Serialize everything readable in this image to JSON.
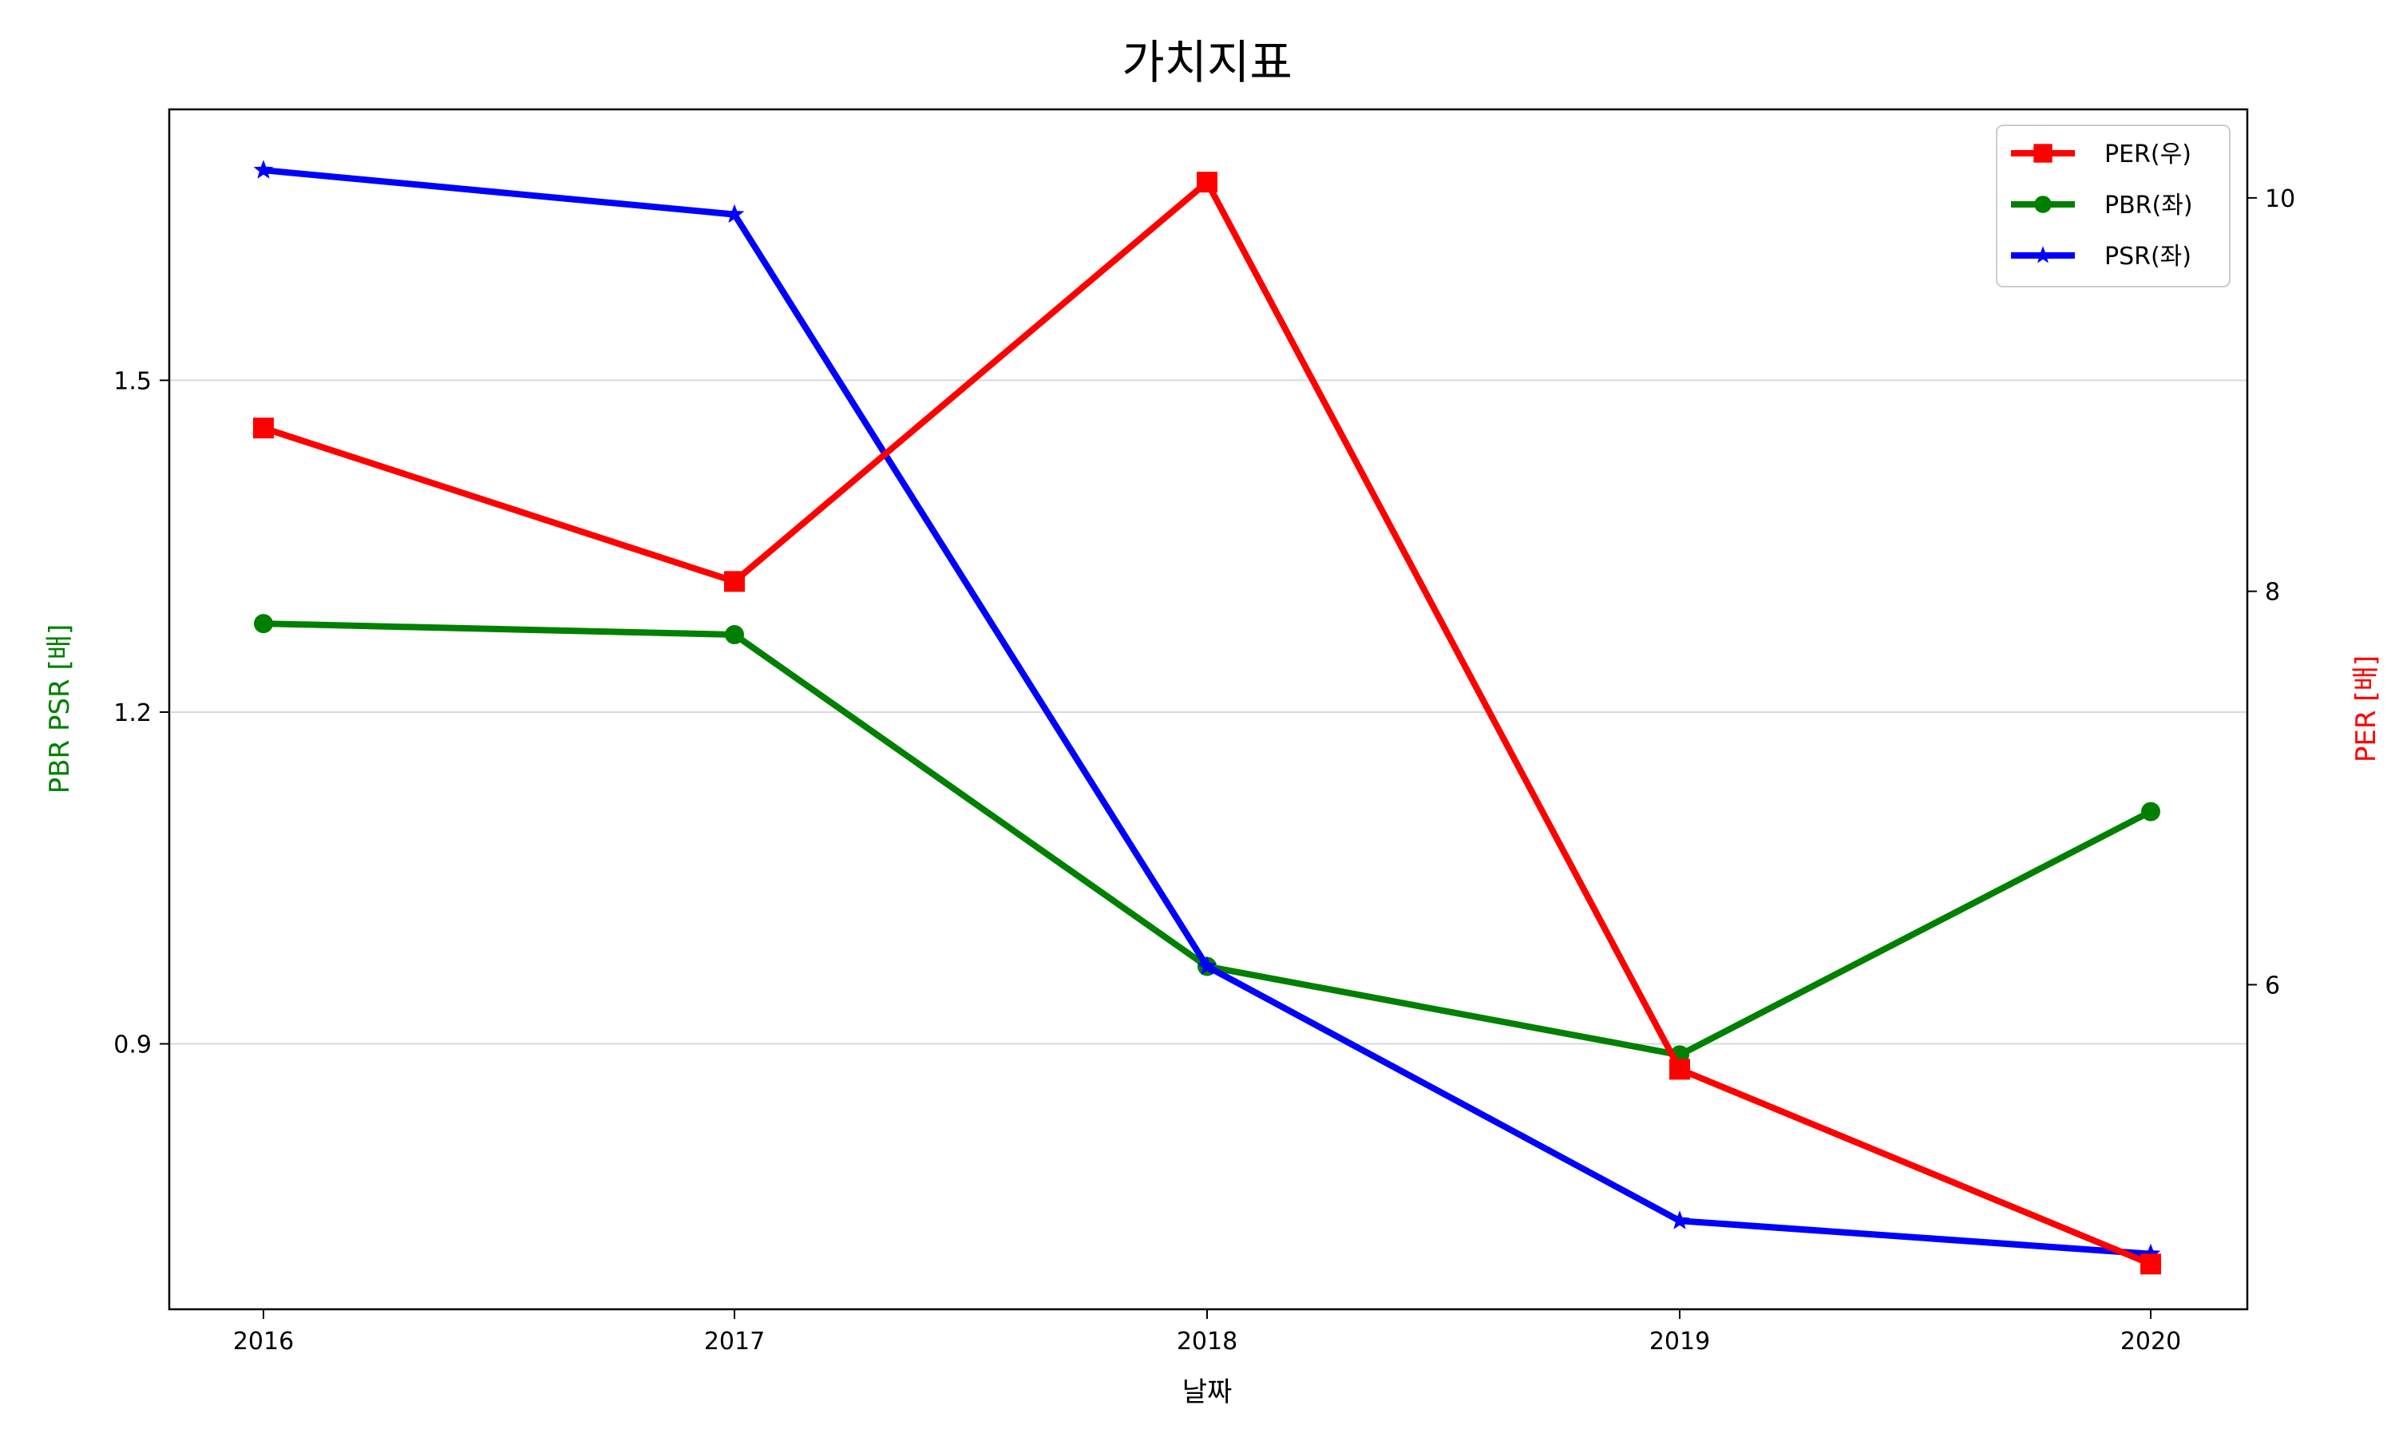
{
  "chart_data": {
    "type": "line",
    "title": "가치지표",
    "xlabel": "날짜",
    "ylabel_left": "PBR PSR [배]",
    "ylabel_right": "PER [배]",
    "categories": [
      "2016",
      "2017",
      "2018",
      "2019",
      "2020"
    ],
    "y_left_lim": [
      0.66,
      1.745
    ],
    "y_left_ticks": [
      0.9,
      1.2,
      1.5
    ],
    "y_left_tick_labels": [
      "0.9",
      "1.2",
      "1.5"
    ],
    "y_right_lim": [
      4.35,
      10.45
    ],
    "y_right_ticks": [
      6,
      8,
      10
    ],
    "y_right_tick_labels": [
      "6",
      "8",
      "10"
    ],
    "grid": "horizontal",
    "legend_position": "top-right",
    "series": [
      {
        "name": "PER(우)",
        "axis": "right",
        "color": "#ff0000",
        "marker": "square",
        "values": [
          8.83,
          8.05,
          10.08,
          5.57,
          4.58
        ]
      },
      {
        "name": "PBR(좌)",
        "axis": "left",
        "color": "#008000",
        "marker": "circle",
        "values": [
          1.28,
          1.27,
          0.97,
          0.89,
          1.11
        ]
      },
      {
        "name": "PSR(좌)",
        "axis": "left",
        "color": "#0000ff",
        "marker": "star",
        "values": [
          1.69,
          1.65,
          0.97,
          0.74,
          0.71
        ]
      }
    ],
    "axis_colors": {
      "left_label": "#008000",
      "right_label": "#ff0000"
    }
  }
}
